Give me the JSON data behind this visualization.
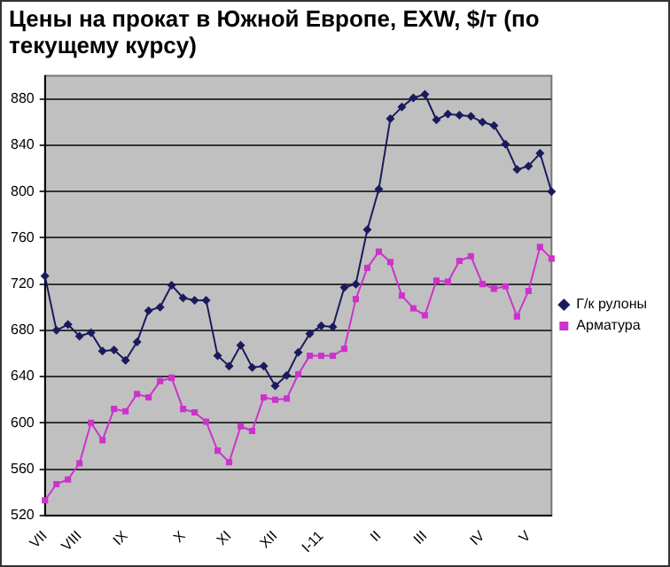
{
  "chart_data": {
    "type": "line",
    "title": "Цены на прокат в Южной Европе, EXW, $/т (по текущему курсу)",
    "categories": [
      "VII",
      null,
      null,
      "VIII",
      null,
      null,
      null,
      "IX",
      null,
      null,
      null,
      null,
      "X",
      null,
      null,
      null,
      "XI",
      null,
      null,
      null,
      "XII",
      null,
      null,
      null,
      "I-11",
      null,
      null,
      null,
      null,
      "II",
      null,
      null,
      null,
      "III",
      null,
      null,
      null,
      null,
      "IV",
      null,
      null,
      null,
      "V",
      null,
      null
    ],
    "series": [
      {
        "name": "Г/к рулоны",
        "color": "#1a1a5e",
        "marker": "diamond",
        "values": [
          727,
          680,
          685,
          675,
          678,
          662,
          663,
          654,
          670,
          697,
          700,
          719,
          708,
          706,
          706,
          658,
          649,
          667,
          648,
          649,
          632,
          641,
          661,
          677,
          684,
          683,
          717,
          720,
          767,
          802,
          863,
          873,
          881,
          884,
          862,
          867,
          866,
          865,
          860,
          857,
          841,
          819,
          822,
          833,
          800
        ]
      },
      {
        "name": "Арматура",
        "color": "#cc33cc",
        "marker": "square",
        "values": [
          533,
          547,
          551,
          565,
          600,
          585,
          612,
          610,
          625,
          622,
          636,
          639,
          612,
          609,
          601,
          576,
          566,
          597,
          593,
          622,
          620,
          621,
          642,
          658,
          658,
          658,
          664,
          707,
          734,
          748,
          739,
          710,
          699,
          693,
          723,
          722,
          740,
          744,
          720,
          716,
          718,
          692,
          714,
          752,
          742
        ]
      }
    ],
    "ylim": [
      520,
      900
    ],
    "yticks": [
      520,
      560,
      600,
      640,
      680,
      720,
      760,
      800,
      840,
      880
    ],
    "grid": "y",
    "legend": "right",
    "line_style": "solid"
  }
}
